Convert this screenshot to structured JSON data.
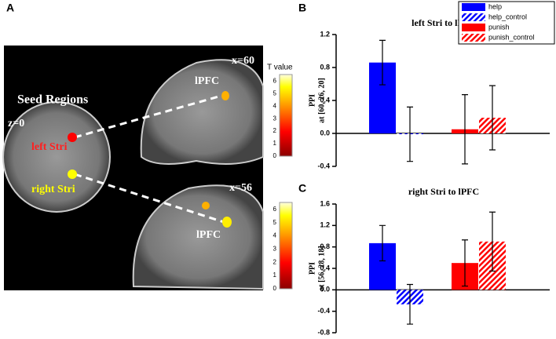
{
  "panel_labels": [
    "A",
    "B",
    "C"
  ],
  "brain_panel": {
    "seed_title": "Seed Regions",
    "axial_slice": "z=0",
    "left_seed": "left Stri",
    "right_seed": "right Stri",
    "top_slice": "x=60",
    "top_target": "lPFC",
    "bottom_slice": "x=56",
    "bottom_target": "lPFC",
    "colorbar_title": "T value",
    "colorbar_ticks": [
      0,
      1,
      2,
      3,
      4,
      5,
      6
    ]
  },
  "chart_data": [
    {
      "type": "bar",
      "title": "left Stri to lPFC",
      "y_label": "PPI",
      "y_sublabel": "at [60, 26, 20]",
      "ylim": [
        -0.4,
        1.2
      ],
      "yticks": [
        -0.4,
        {
          "value": 0,
          "label": "0.0"
        },
        0.4,
        0.8,
        1.2
      ],
      "legend": "upper right",
      "series": [
        {
          "name": "help",
          "color": "#0000ff",
          "hatch": false,
          "values": [
            0.86
          ],
          "errors": [
            0.27
          ]
        },
        {
          "name": "help_control",
          "color": "#0000ff",
          "hatch": true,
          "values": [
            -0.01
          ],
          "errors": [
            0.33
          ]
        },
        {
          "name": "punish",
          "color": "#ff0000",
          "hatch": false,
          "values": [
            0.05
          ],
          "errors": [
            0.42
          ]
        },
        {
          "name": "punish_control",
          "color": "#ff0000",
          "hatch": true,
          "values": [
            0.19
          ],
          "errors": [
            0.39
          ]
        }
      ]
    },
    {
      "type": "bar",
      "title": "right Stri to lPFC",
      "y_label": "PPI",
      "y_sublabel": "at [56, 28, 18]",
      "ylim": [
        -0.8,
        1.6
      ],
      "yticks": [
        -0.8,
        -0.4,
        {
          "value": 0,
          "label": "0.0"
        },
        0.4,
        0.8,
        1.2,
        1.6
      ],
      "series": [
        {
          "name": "help",
          "color": "#0000ff",
          "hatch": false,
          "values": [
            0.87
          ],
          "errors": [
            0.33
          ]
        },
        {
          "name": "help_control",
          "color": "#0000ff",
          "hatch": true,
          "values": [
            -0.27
          ],
          "errors": [
            0.37
          ]
        },
        {
          "name": "punish",
          "color": "#ff0000",
          "hatch": false,
          "values": [
            0.5
          ],
          "errors": [
            0.43
          ]
        },
        {
          "name": "punish_control",
          "color": "#ff0000",
          "hatch": true,
          "values": [
            0.9
          ],
          "errors": [
            0.55
          ]
        }
      ]
    }
  ]
}
